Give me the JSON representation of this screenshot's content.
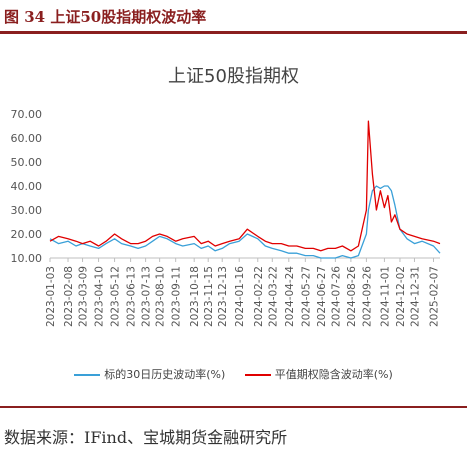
{
  "figure": {
    "title": "图 34 上证50股指期权波动率",
    "source": "数据来源：IFind、宝城期货金融研究所",
    "accent_color": "#8a1f1f"
  },
  "chart_data": {
    "type": "line",
    "title": "上证50股指期权",
    "xlabel": "",
    "ylabel": "",
    "ylim": [
      10,
      70
    ],
    "yticks": [
      "10.00",
      "20.00",
      "30.00",
      "40.00",
      "50.00",
      "60.00",
      "70.00"
    ],
    "xticks": [
      "2023-01-03",
      "2023-02-08",
      "2023-03-09",
      "2023-04-10",
      "2023-05-12",
      "2023-06-13",
      "2023-07-13",
      "2023-08-10",
      "2023-09-11",
      "2023-10-18",
      "2023-11-15",
      "2023-12-13",
      "2024-01-16",
      "2024-02-22",
      "2024-03-22",
      "2024-04-24",
      "2024-05-27",
      "2024-06-27",
      "2024-07-26",
      "2024-08-26",
      "2024-09-26",
      "2024-11-01",
      "2024-12-02",
      "2024-12-31",
      "2025-02-07"
    ],
    "grid": false,
    "legend_position": "bottom",
    "series": [
      {
        "name": "标的30日历史波动率(%)",
        "color": "#3aa0d8",
        "x": [
          "2023-01-03",
          "2023-01-20",
          "2023-02-08",
          "2023-02-24",
          "2023-03-09",
          "2023-03-24",
          "2023-04-10",
          "2023-04-25",
          "2023-05-12",
          "2023-05-26",
          "2023-06-13",
          "2023-06-28",
          "2023-07-13",
          "2023-07-27",
          "2023-08-10",
          "2023-08-25",
          "2023-09-11",
          "2023-09-25",
          "2023-10-18",
          "2023-11-01",
          "2023-11-15",
          "2023-11-29",
          "2023-12-13",
          "2023-12-28",
          "2024-01-16",
          "2024-02-01",
          "2024-02-22",
          "2024-03-08",
          "2024-03-22",
          "2024-04-09",
          "2024-04-24",
          "2024-05-10",
          "2024-05-27",
          "2024-06-12",
          "2024-06-27",
          "2024-07-11",
          "2024-07-26",
          "2024-08-09",
          "2024-08-26",
          "2024-09-10",
          "2024-09-26",
          "2024-09-30",
          "2024-10-08",
          "2024-10-16",
          "2024-10-24",
          "2024-11-01",
          "2024-11-08",
          "2024-11-15",
          "2024-11-22",
          "2024-12-02",
          "2024-12-16",
          "2024-12-31",
          "2025-01-15",
          "2025-02-07",
          "2025-02-20"
        ],
        "y": [
          18,
          16,
          17,
          15,
          16,
          15,
          14,
          16,
          18,
          16,
          15,
          14,
          15,
          17,
          19,
          18,
          16,
          15,
          16,
          14,
          15,
          13,
          14,
          16,
          17,
          20,
          18,
          15,
          14,
          13,
          12,
          12,
          11,
          11,
          10,
          10,
          10,
          11,
          10,
          11,
          20,
          30,
          38,
          40,
          39,
          40,
          40,
          38,
          32,
          22,
          18,
          16,
          17,
          15,
          12
        ]
      },
      {
        "name": "平值期权隐含波动率(%)",
        "color": "#e00000",
        "x": [
          "2023-01-03",
          "2023-01-20",
          "2023-02-08",
          "2023-02-24",
          "2023-03-09",
          "2023-03-24",
          "2023-04-10",
          "2023-04-25",
          "2023-05-12",
          "2023-05-26",
          "2023-06-13",
          "2023-06-28",
          "2023-07-13",
          "2023-07-27",
          "2023-08-10",
          "2023-08-25",
          "2023-09-11",
          "2023-09-25",
          "2023-10-18",
          "2023-11-01",
          "2023-11-15",
          "2023-11-29",
          "2023-12-13",
          "2023-12-28",
          "2024-01-16",
          "2024-02-01",
          "2024-02-22",
          "2024-03-08",
          "2024-03-22",
          "2024-04-09",
          "2024-04-24",
          "2024-05-10",
          "2024-05-27",
          "2024-06-12",
          "2024-06-27",
          "2024-07-11",
          "2024-07-26",
          "2024-08-09",
          "2024-08-26",
          "2024-09-10",
          "2024-09-26",
          "2024-09-30",
          "2024-10-08",
          "2024-10-16",
          "2024-10-24",
          "2024-11-01",
          "2024-11-08",
          "2024-11-15",
          "2024-11-22",
          "2024-12-02",
          "2024-12-16",
          "2024-12-31",
          "2025-01-15",
          "2025-02-07",
          "2025-02-20"
        ],
        "y": [
          17,
          19,
          18,
          17,
          16,
          17,
          15,
          17,
          20,
          18,
          16,
          16,
          17,
          19,
          20,
          19,
          17,
          18,
          19,
          16,
          17,
          15,
          16,
          17,
          18,
          22,
          19,
          17,
          16,
          16,
          15,
          15,
          14,
          14,
          13,
          14,
          14,
          15,
          13,
          15,
          30,
          67,
          45,
          30,
          38,
          31,
          36,
          25,
          28,
          22,
          20,
          19,
          18,
          17,
          16
        ]
      }
    ]
  }
}
